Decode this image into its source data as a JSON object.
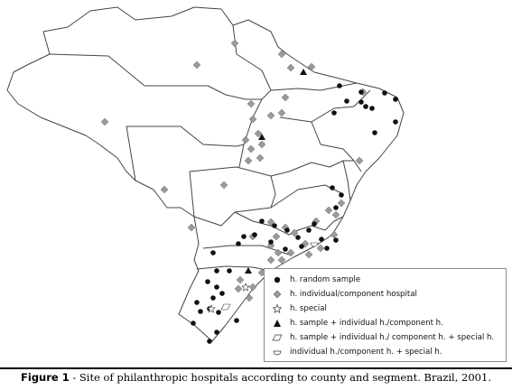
{
  "legend": {
    "items": [
      {
        "symbol": "circle",
        "label": "h. random sample"
      },
      {
        "symbol": "diamond",
        "label": "h. individual/component hospital"
      },
      {
        "symbol": "star",
        "label": "h. special"
      },
      {
        "symbol": "triangle",
        "label": "h. sample + individual h./component h."
      },
      {
        "symbol": "parallelogram",
        "label": "h. sample + individual h./ component h. + special h."
      },
      {
        "symbol": "half-circle",
        "label": "individual h./component h. + special h."
      }
    ]
  },
  "caption": {
    "label": "Figure 1",
    "text": " - Site of philanthropic hospitals according to county and segment. Brazil,  2001."
  },
  "colors": {
    "marker": "#111111",
    "diamond": "#9a9a9a",
    "outline": "#555555"
  }
}
